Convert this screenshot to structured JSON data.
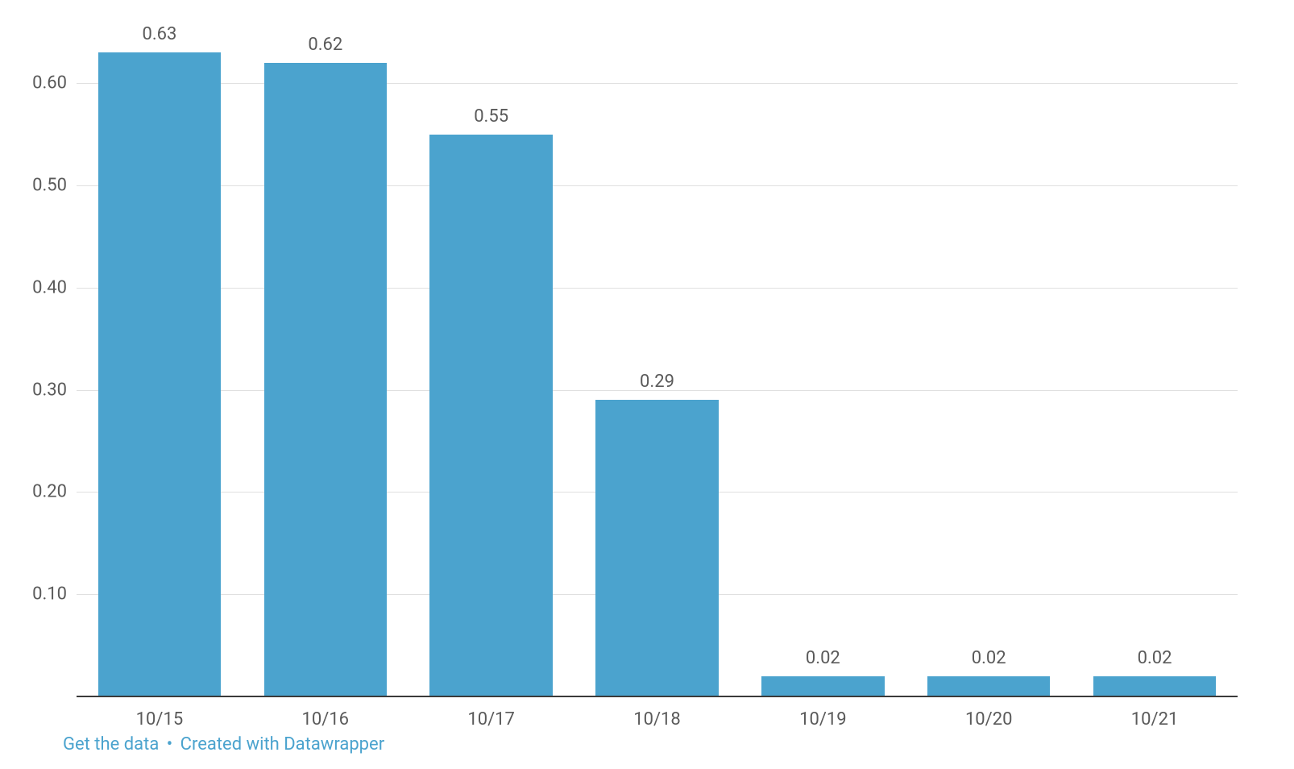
{
  "chart": {
    "type": "bar",
    "categories": [
      "10/15",
      "10/16",
      "10/17",
      "10/18",
      "10/19",
      "10/20",
      "10/21"
    ],
    "values": [
      0.63,
      0.62,
      0.55,
      0.29,
      0.02,
      0.02,
      0.02
    ],
    "value_labels": [
      "0.63",
      "0.62",
      "0.55",
      "0.29",
      "0.02",
      "0.02",
      "0.02"
    ],
    "bar_color": "#4ba3ce",
    "background_color": "#ffffff",
    "grid_color": "#e0e0e0",
    "baseline_color": "#3a3a3a",
    "label_color": "#5a5a5a",
    "bar_width_ratio": 0.74,
    "ylim": [
      0,
      0.65
    ],
    "yticks": [
      0.1,
      0.2,
      0.3,
      0.4,
      0.5,
      0.6
    ],
    "ytick_labels": [
      "0.10",
      "0.20",
      "0.30",
      "0.40",
      "0.50",
      "0.60"
    ],
    "tick_fontsize": 22,
    "value_label_fontsize": 22
  },
  "footer": {
    "get_data": "Get the data",
    "created_with": "Created with Datawrapper",
    "link_color": "#4ba3ce"
  }
}
